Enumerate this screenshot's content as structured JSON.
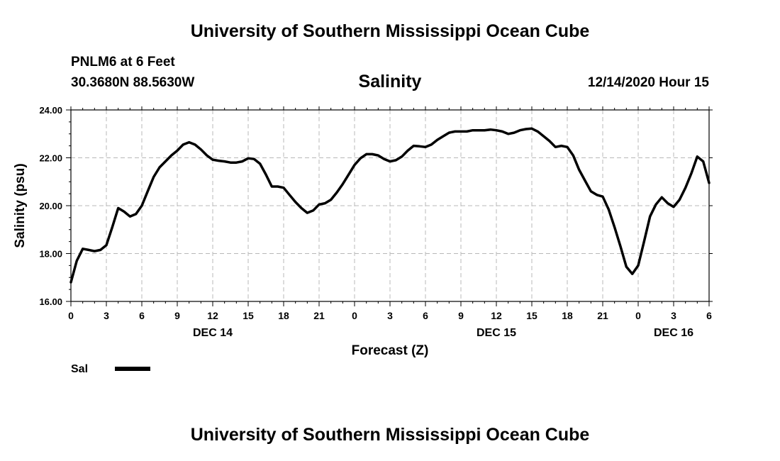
{
  "header": {
    "title": "University of Southern Mississippi Ocean Cube",
    "station": "PNLM6 at 6 Feet",
    "coords": "30.3680N 88.5630W",
    "variable": "Salinity",
    "datetime": "12/14/2020 Hour 15"
  },
  "footer": {
    "title": "University of Southern Mississippi Ocean Cube"
  },
  "chart_data": {
    "type": "line",
    "title": "Salinity",
    "xlabel": "Forecast (Z)",
    "ylabel": "Salinity (psu)",
    "xlim": [
      0,
      54
    ],
    "ylim": [
      16,
      24
    ],
    "x_ticks": [
      0,
      3,
      6,
      9,
      12,
      15,
      18,
      21,
      24,
      27,
      30,
      33,
      36,
      39,
      42,
      45,
      48,
      51,
      54
    ],
    "x_tick_labels": [
      "0",
      "3",
      "6",
      "9",
      "12",
      "15",
      "18",
      "21",
      "0",
      "3",
      "6",
      "9",
      "12",
      "15",
      "18",
      "21",
      "0",
      "3",
      "6"
    ],
    "y_ticks": [
      16,
      18,
      20,
      22,
      24
    ],
    "y_tick_labels": [
      "16.00",
      "18.00",
      "20.00",
      "22.00",
      "24.00"
    ],
    "date_labels": [
      {
        "x": 12,
        "label": "DEC 14"
      },
      {
        "x": 36,
        "label": "DEC 15"
      },
      {
        "x": 51,
        "label": "DEC 16"
      }
    ],
    "grid": true,
    "legend": "bottom-left",
    "series": [
      {
        "name": "Sal",
        "color": "#000000",
        "x": [
          0,
          0.5,
          1,
          1.5,
          2,
          2.5,
          3,
          3.5,
          4,
          4.5,
          5,
          5.5,
          6,
          6.5,
          7,
          7.5,
          8,
          8.5,
          9,
          9.5,
          10,
          10.5,
          11,
          11.5,
          12,
          12.5,
          13,
          13.5,
          14,
          14.5,
          15,
          15.5,
          16,
          16.5,
          17,
          17.5,
          18,
          18.5,
          19,
          19.5,
          20,
          20.5,
          21,
          21.5,
          22,
          22.5,
          23,
          23.5,
          24,
          24.5,
          25,
          25.5,
          26,
          26.5,
          27,
          27.5,
          28,
          28.5,
          29,
          29.5,
          30,
          30.5,
          31,
          31.5,
          32,
          32.5,
          33,
          33.5,
          34,
          34.5,
          35,
          35.5,
          36,
          36.5,
          37,
          37.5,
          38,
          38.5,
          39,
          39.5,
          40,
          40.5,
          41,
          41.5,
          42,
          42.5,
          43,
          43.5,
          44,
          44.5,
          45,
          45.5,
          46,
          46.5,
          47,
          47.5,
          48,
          48.5,
          49,
          49.5,
          50,
          50.5,
          51,
          51.5,
          52,
          52.5,
          53,
          53.5,
          54
        ],
        "values": [
          16.8,
          17.7,
          18.2,
          18.15,
          18.1,
          18.15,
          18.35,
          19.1,
          19.9,
          19.75,
          19.55,
          19.65,
          20.0,
          20.6,
          21.2,
          21.6,
          21.85,
          22.1,
          22.3,
          22.55,
          22.65,
          22.55,
          22.35,
          22.1,
          21.92,
          21.88,
          21.85,
          21.8,
          21.8,
          21.85,
          21.98,
          21.95,
          21.75,
          21.3,
          20.8,
          20.8,
          20.75,
          20.45,
          20.15,
          19.9,
          19.7,
          19.8,
          20.05,
          20.1,
          20.25,
          20.55,
          20.9,
          21.3,
          21.7,
          21.98,
          22.15,
          22.15,
          22.1,
          21.95,
          21.85,
          21.9,
          22.05,
          22.3,
          22.5,
          22.48,
          22.45,
          22.55,
          22.75,
          22.9,
          23.05,
          23.1,
          23.1,
          23.1,
          23.15,
          23.15,
          23.15,
          23.18,
          23.15,
          23.1,
          23.0,
          23.05,
          23.15,
          23.2,
          23.22,
          23.1,
          22.9,
          22.7,
          22.45,
          22.5,
          22.45,
          22.1,
          21.5,
          21.05,
          20.6,
          20.45,
          20.38,
          19.85,
          19.1,
          18.3,
          17.45,
          17.15,
          17.5,
          18.5,
          19.55,
          20.05,
          20.35,
          20.1,
          19.95,
          20.25,
          20.75,
          21.35,
          22.05,
          21.85,
          20.95
        ]
      }
    ]
  },
  "legend": {
    "label": "Sal"
  }
}
